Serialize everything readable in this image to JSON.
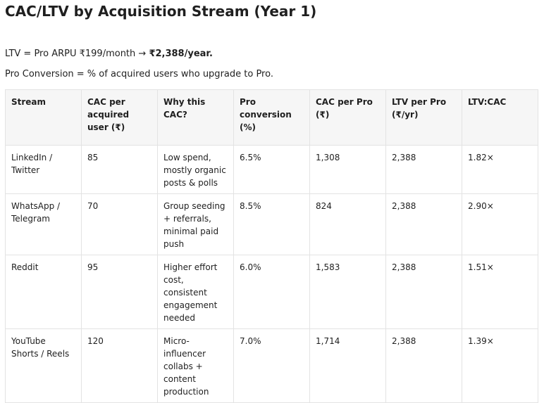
{
  "title": "CAC/LTV by Acquisition Stream (Year 1)",
  "ltv_note": {
    "prefix": "LTV = Pro ARPU ₹199/month → ",
    "value": "₹2,388/year."
  },
  "conversion_note": "Pro Conversion = % of acquired users who upgrade to Pro.",
  "table": {
    "headers": [
      "Stream",
      "CAC per acquired user (₹)",
      "Why this CAC?",
      "Pro conversion (%)",
      "CAC per Pro (₹)",
      "LTV per Pro (₹/yr)",
      "LTV:CAC"
    ],
    "rows": [
      [
        "LinkedIn / Twitter",
        "85",
        "Low spend, mostly organic posts & polls",
        "6.5%",
        "1,308",
        "2,388",
        "1.82×"
      ],
      [
        "WhatsApp / Telegram",
        "70",
        "Group seeding + referrals, minimal paid push",
        "8.5%",
        "824",
        "2,388",
        "2.90×"
      ],
      [
        "Reddit",
        "95",
        "Higher effort cost, consistent engagement needed",
        "6.0%",
        "1,583",
        "2,388",
        "1.51×"
      ],
      [
        "YouTube Shorts / Reels",
        "120",
        "Micro-influencer collabs + content production",
        "7.0%",
        "1,714",
        "2,388",
        "1.39×"
      ]
    ]
  }
}
